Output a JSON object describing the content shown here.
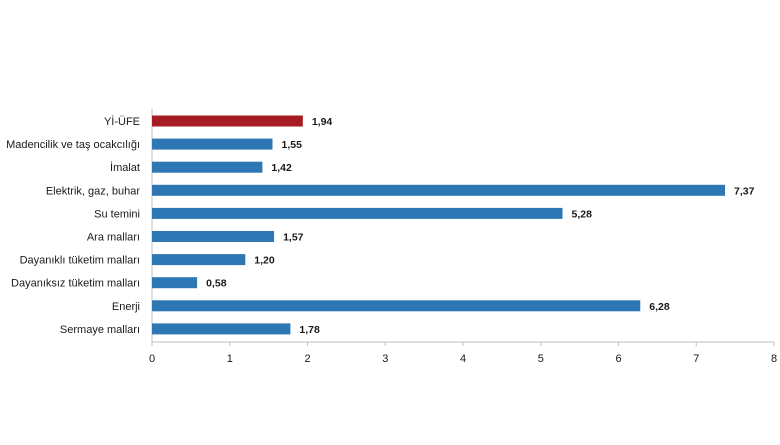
{
  "chart_data": {
    "type": "bar",
    "orientation": "horizontal",
    "title": "",
    "xlabel": "",
    "ylabel": "",
    "categories": [
      "Yİ-ÜFE",
      "Madencilik ve taş ocakcılığı",
      "İmalat",
      "Elektrik, gaz, buhar",
      "Su temini",
      "Ara malları",
      "Dayanıklı tüketim malları",
      "Dayanıksız tüketim malları",
      "Enerji",
      "Sermaye malları"
    ],
    "values": [
      1.94,
      1.55,
      1.42,
      7.37,
      5.28,
      1.57,
      1.2,
      0.58,
      6.28,
      1.78
    ],
    "value_labels": [
      "1,94",
      "1,55",
      "1,42",
      "7,37",
      "5,28",
      "1,57",
      "1,20",
      "0,58",
      "6,28",
      "1,78"
    ],
    "xlim": [
      0,
      8
    ],
    "xticks": [
      "0",
      "1",
      "2",
      "3",
      "4",
      "5",
      "6",
      "7",
      "8"
    ],
    "grid": false,
    "legend": "none",
    "colors": {
      "highlight": "#a51d23",
      "default": "#2e77b5",
      "axis": "#bfbfbf"
    },
    "highlight_index": 0
  }
}
